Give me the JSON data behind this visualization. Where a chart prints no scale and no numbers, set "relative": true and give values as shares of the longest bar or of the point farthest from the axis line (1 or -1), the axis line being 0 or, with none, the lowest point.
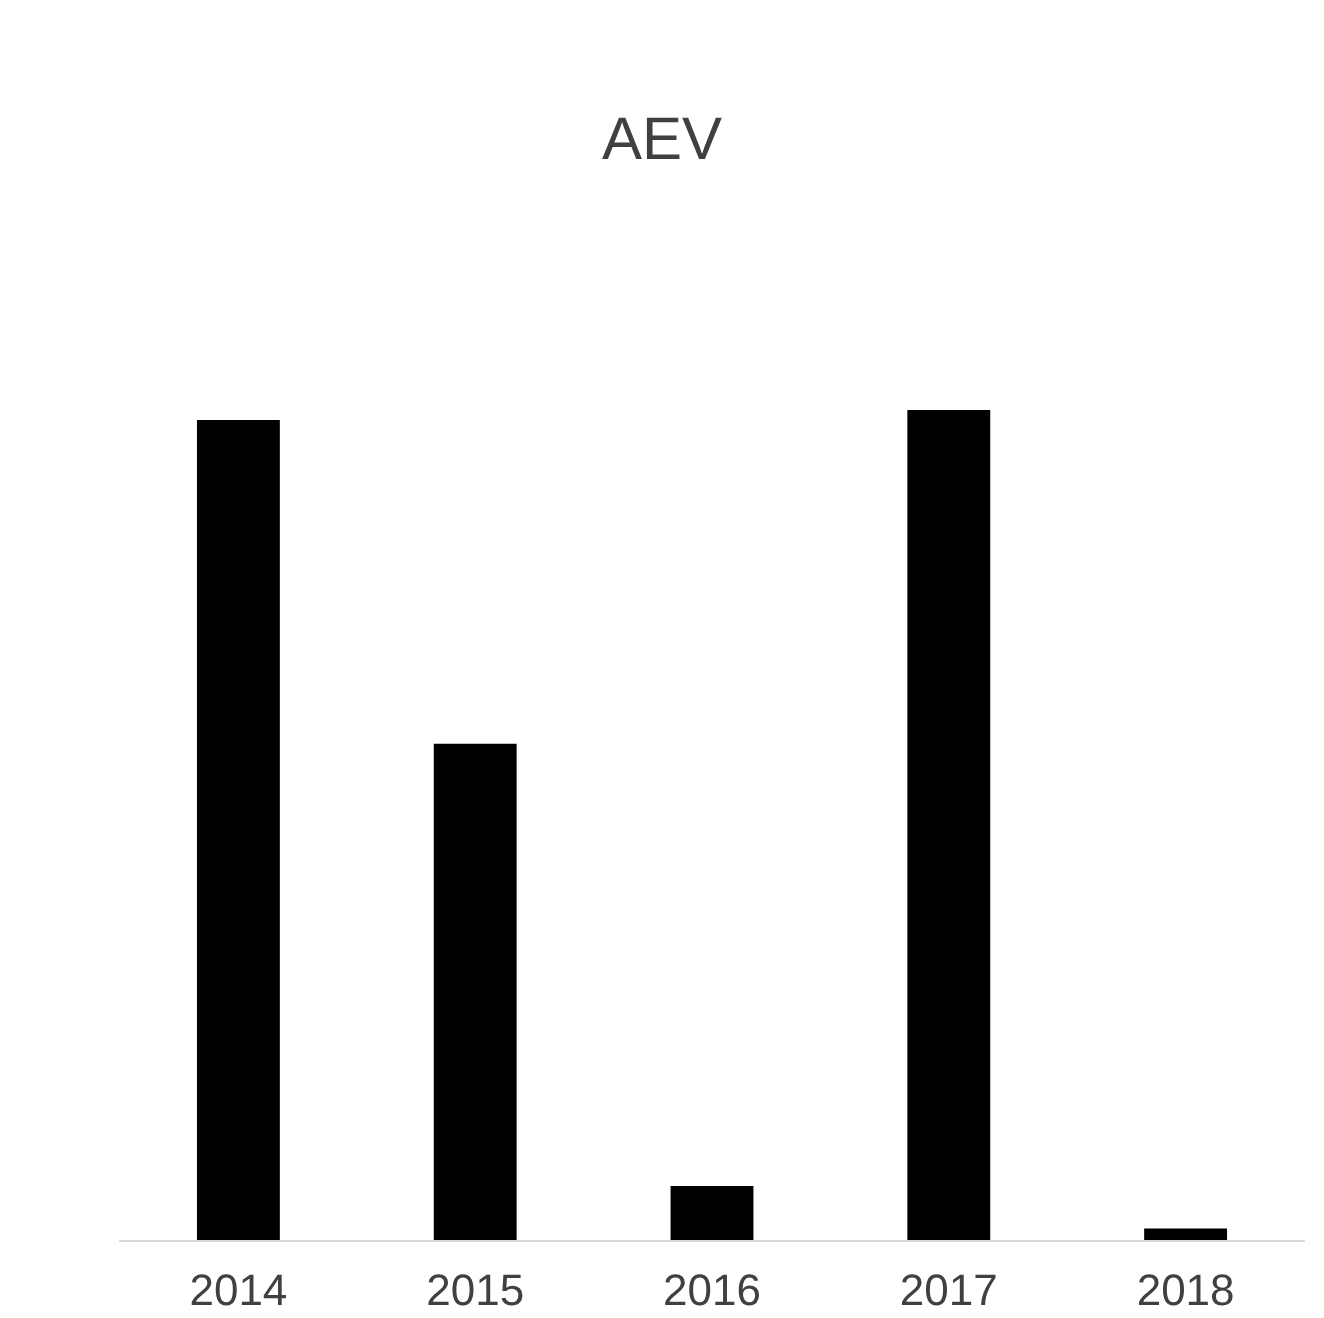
{
  "chart_data": {
    "type": "bar",
    "title": "AEV",
    "categories": [
      "2014",
      "2015",
      "2016",
      "2017",
      "2018"
    ],
    "values": [
      0.988,
      0.598,
      0.065,
      1,
      0.014
    ],
    "color": "#000000",
    "relative": true
  }
}
